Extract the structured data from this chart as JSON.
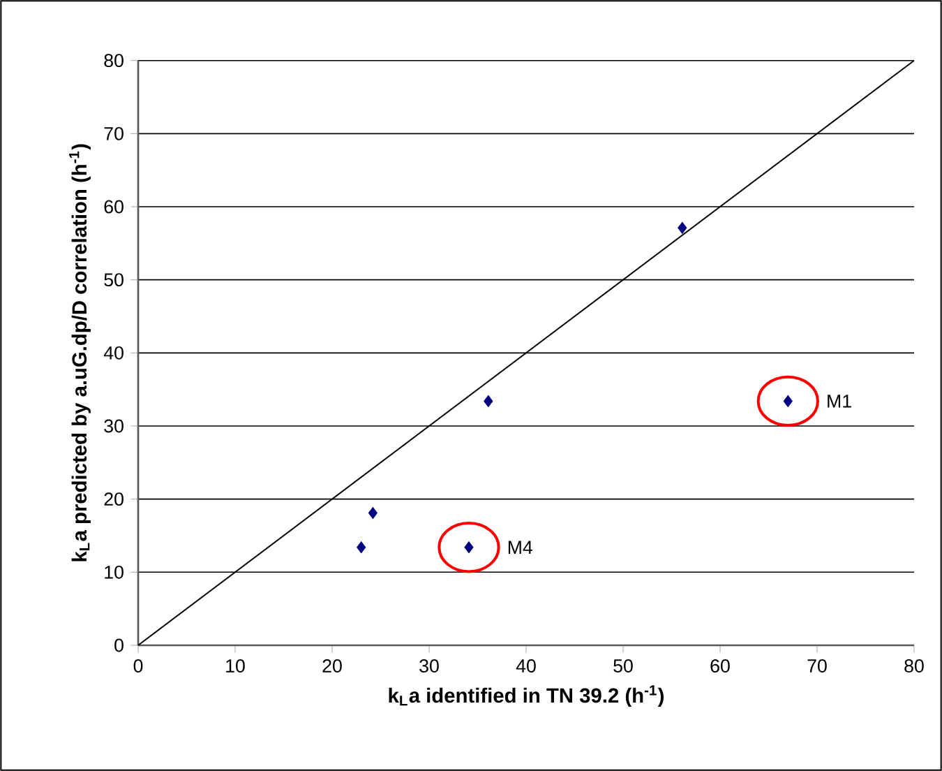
{
  "chart_data": {
    "type": "scatter",
    "xlabel": "k$_{L}$a identified in TN 39.2 (h$^{-1}$)",
    "ylabel": "k$_{L}$a predicted by a.uG.dp/D correlation (h$^{-1}$)",
    "series": [
      {
        "color": "#000080",
        "marker": "diamond",
        "x": [
          23,
          24.2,
          34.1,
          36.1,
          56.1,
          67
        ],
        "values": [
          13.4,
          18.1,
          13.4,
          33.4,
          57.1,
          33.4
        ]
      },
      {
        "type": "line",
        "color": "#000000",
        "marker": "none",
        "line_style": "solid",
        "x": [
          0,
          80
        ],
        "values": [
          0,
          80
        ]
      }
    ],
    "annotations": [
      {
        "text": "M1",
        "x": 67,
        "y": 33.4
      },
      {
        "text": "M4",
        "x": 34.1,
        "y": 13.4
      }
    ],
    "xlim": [
      0,
      80
    ],
    "ylim": [
      0,
      80
    ],
    "xticks": [
      0,
      10,
      20,
      30,
      40,
      50,
      60,
      70,
      80
    ],
    "yticks": [
      0,
      10,
      20,
      30,
      40,
      50,
      60,
      70,
      80
    ],
    "grid": "y"
  }
}
